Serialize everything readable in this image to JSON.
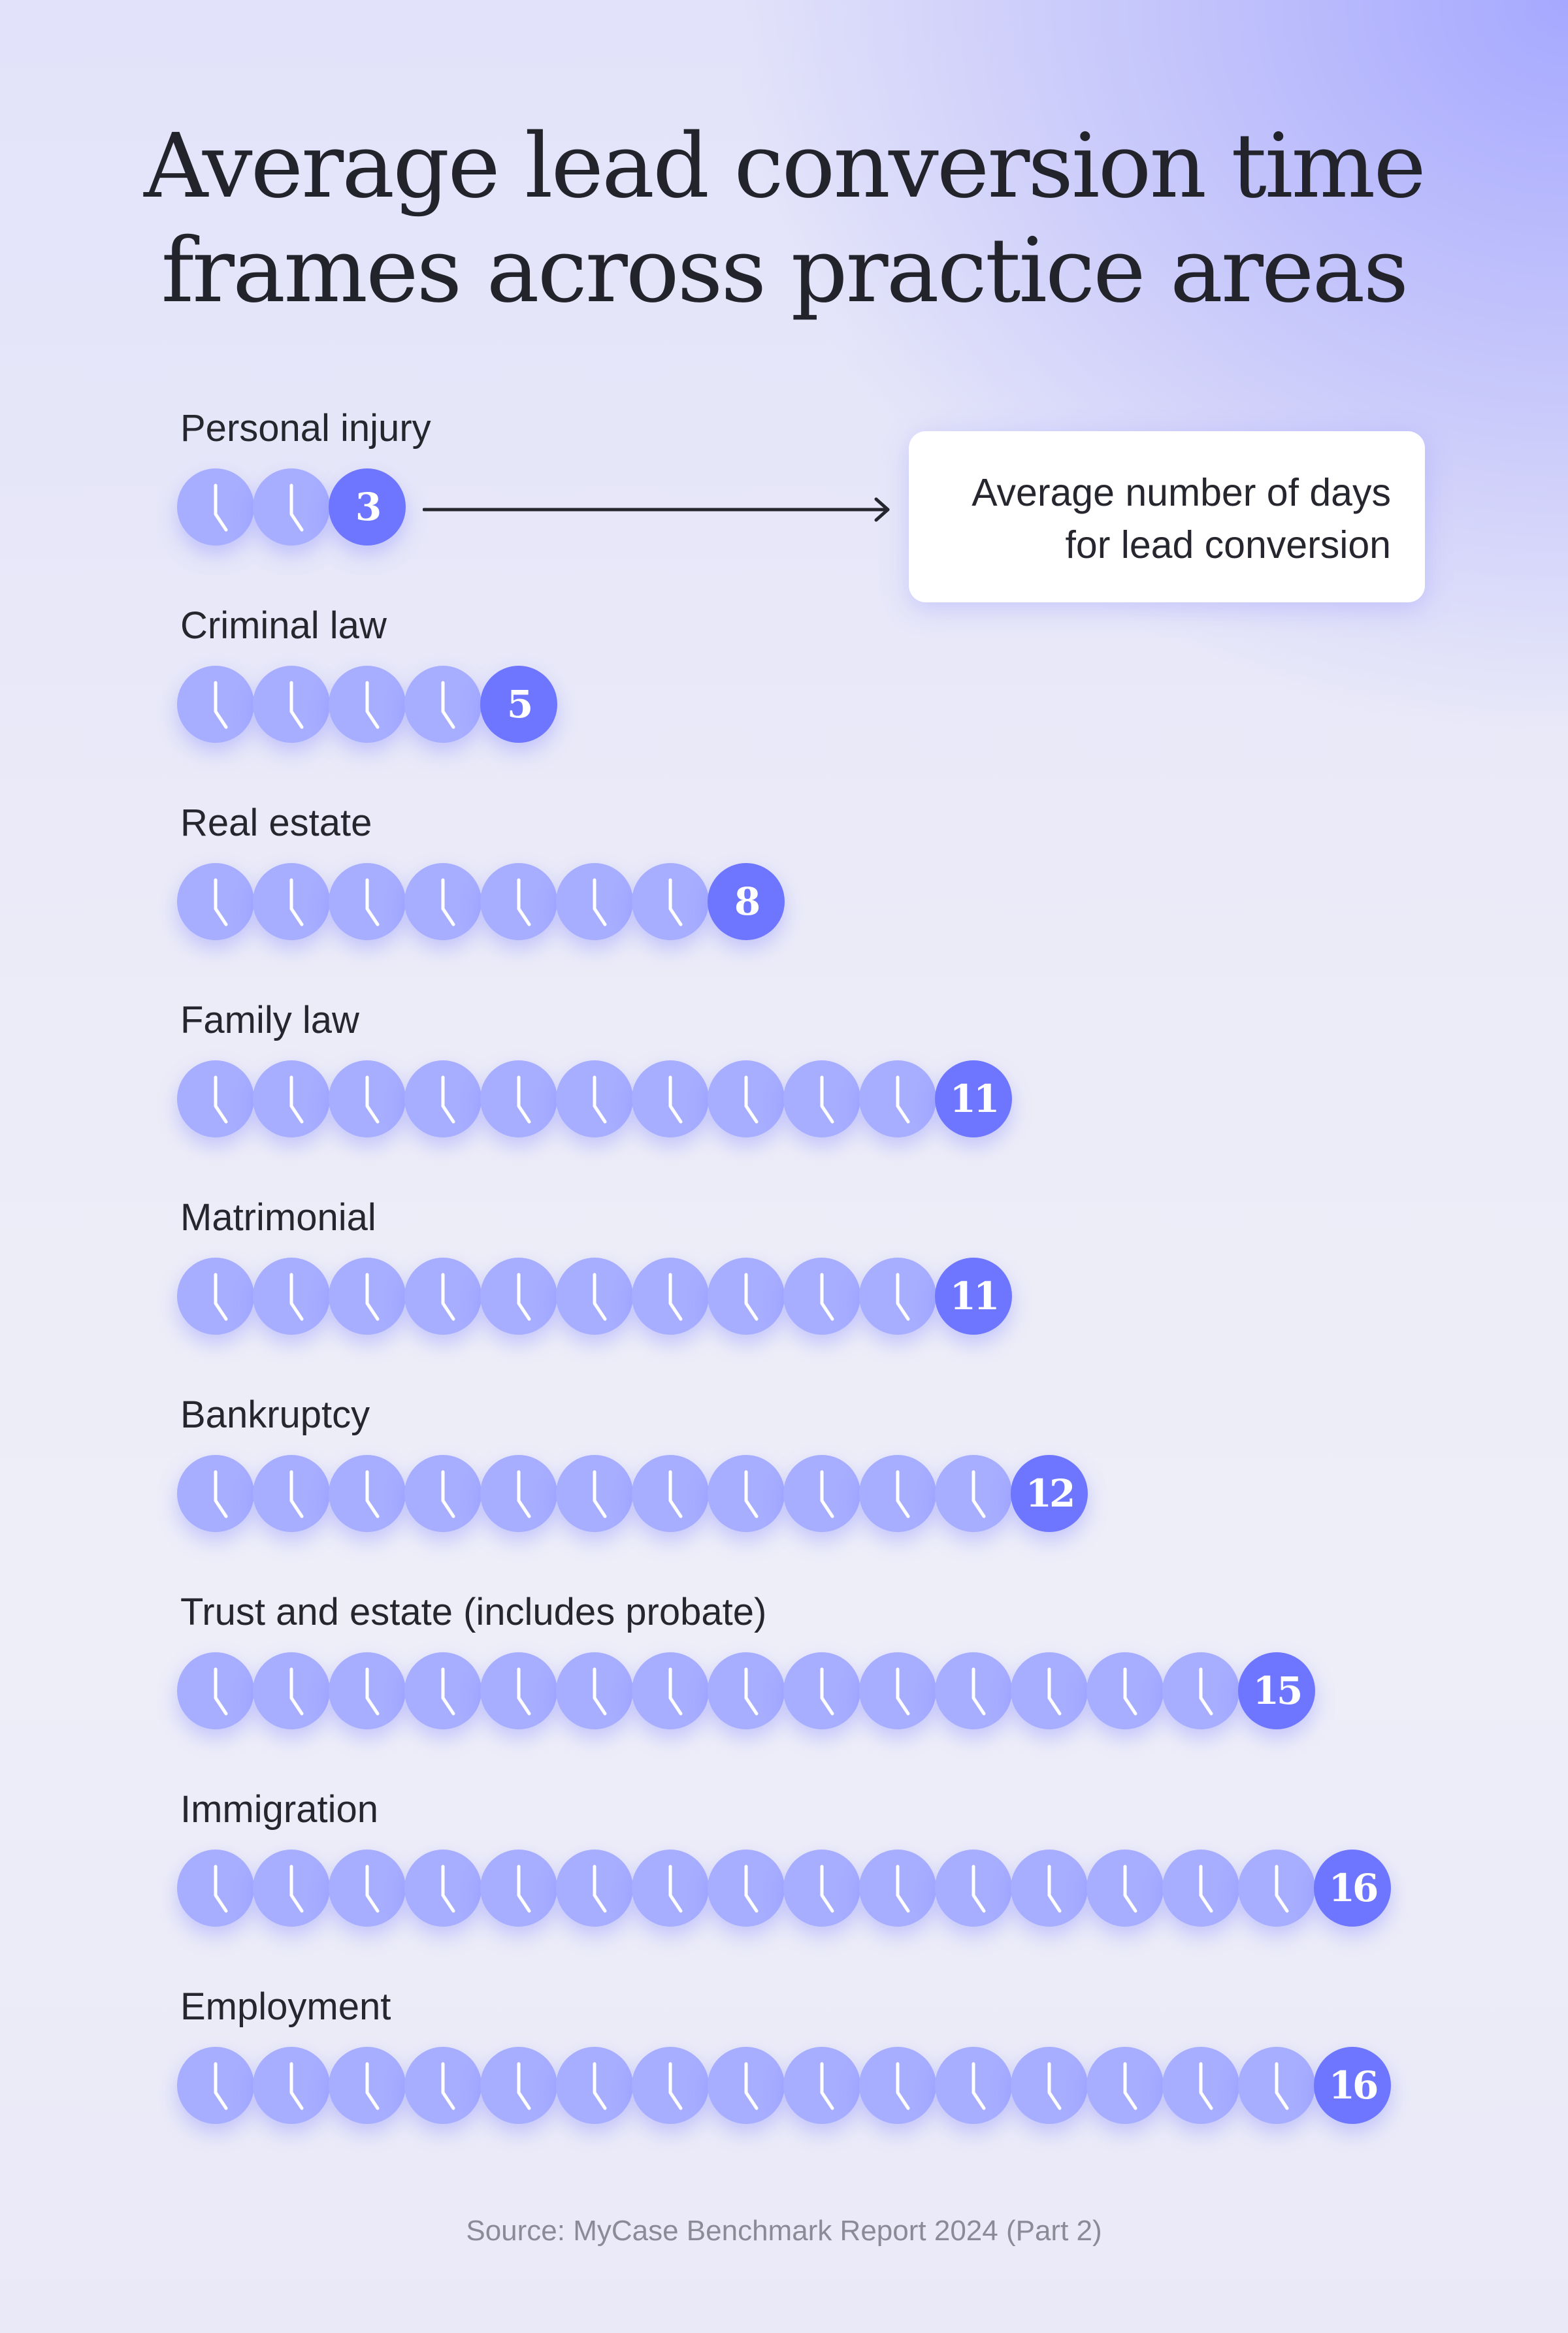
{
  "title_lines": [
    "Average lead conversion time",
    "frames across practice areas"
  ],
  "callout_lines": [
    "Average number of days",
    "for lead conversion"
  ],
  "source": "Source: MyCase Benchmark Report 2024 (Part 2)",
  "icon": "clock-icon",
  "colors": {
    "clock": "#a7adff",
    "value": "#6e76ff",
    "text": "#26262e"
  },
  "chart_data": {
    "type": "pictograph",
    "title": "Average lead conversion time frames across practice areas",
    "unit": "days",
    "categories": [
      "Personal injury",
      "Criminal law",
      "Real estate",
      "Family law",
      "Matrimonial",
      "Bankruptcy",
      "Trust and estate (includes probate)",
      "Immigration",
      "Employment"
    ],
    "values": [
      3,
      5,
      8,
      11,
      11,
      12,
      15,
      16,
      16
    ],
    "labels": [
      "3",
      "5",
      "8",
      "11",
      "11",
      "12",
      "15",
      "16",
      "16"
    ]
  }
}
